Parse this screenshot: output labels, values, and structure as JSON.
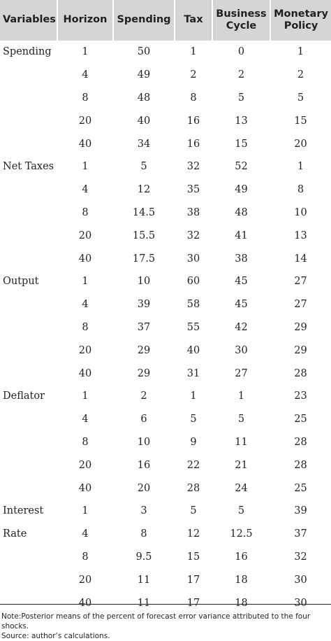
{
  "table": {
    "headers": {
      "variables": "Variables",
      "horizon": "Horizon",
      "spending": "Spending",
      "tax": "Tax",
      "business_cycle": [
        "Business",
        "Cycle"
      ],
      "monetary_policy": [
        "Monetary",
        "Policy"
      ]
    },
    "rows": [
      [
        "Spending",
        "1",
        "50",
        "1",
        "0",
        "1"
      ],
      [
        "",
        "4",
        "49",
        "2",
        "2",
        "2"
      ],
      [
        "",
        "8",
        "48",
        "8",
        "5",
        "5"
      ],
      [
        "",
        "20",
        "40",
        "16",
        "13",
        "15"
      ],
      [
        "",
        "40",
        "34",
        "16",
        "15",
        "20"
      ],
      [
        "Net Taxes",
        "1",
        "5",
        "32",
        "52",
        "1"
      ],
      [
        "",
        "4",
        "12",
        "35",
        "49",
        "8"
      ],
      [
        "",
        "8",
        "14.5",
        "38",
        "48",
        "10"
      ],
      [
        "",
        "20",
        "15.5",
        "32",
        "41",
        "13"
      ],
      [
        "",
        "40",
        "17.5",
        "30",
        "38",
        "14"
      ],
      [
        "Output",
        "1",
        "10",
        "60",
        "45",
        "27"
      ],
      [
        "",
        "4",
        "39",
        "58",
        "45",
        "27"
      ],
      [
        "",
        "8",
        "37",
        "55",
        "42",
        "29"
      ],
      [
        "",
        "20",
        "29",
        "40",
        "30",
        "29"
      ],
      [
        "",
        "40",
        "29",
        "31",
        "27",
        "28"
      ],
      [
        "Deflator",
        "1",
        "2",
        "1",
        "1",
        "23"
      ],
      [
        "",
        "4",
        "6",
        "5",
        "5",
        "25"
      ],
      [
        "",
        "8",
        "10",
        "9",
        "11",
        "28"
      ],
      [
        "",
        "20",
        "16",
        "22",
        "21",
        "28"
      ],
      [
        "",
        "40",
        "20",
        "28",
        "24",
        "25"
      ],
      [
        "Interest",
        "1",
        "3",
        "5",
        "5",
        "39"
      ],
      [
        "Rate",
        "4",
        "8",
        "12",
        "12.5",
        "37"
      ],
      [
        "",
        "8",
        "9.5",
        "15",
        "16",
        "32"
      ],
      [
        "",
        "20",
        "11",
        "17",
        "18",
        "30"
      ],
      [
        "",
        "40",
        "11",
        "17",
        "18",
        "30"
      ]
    ]
  },
  "notes": {
    "note": "Note:Posterior means of the percent of forecast error variance attributed to the four shocks.",
    "source": "Source: author’s calculations."
  }
}
